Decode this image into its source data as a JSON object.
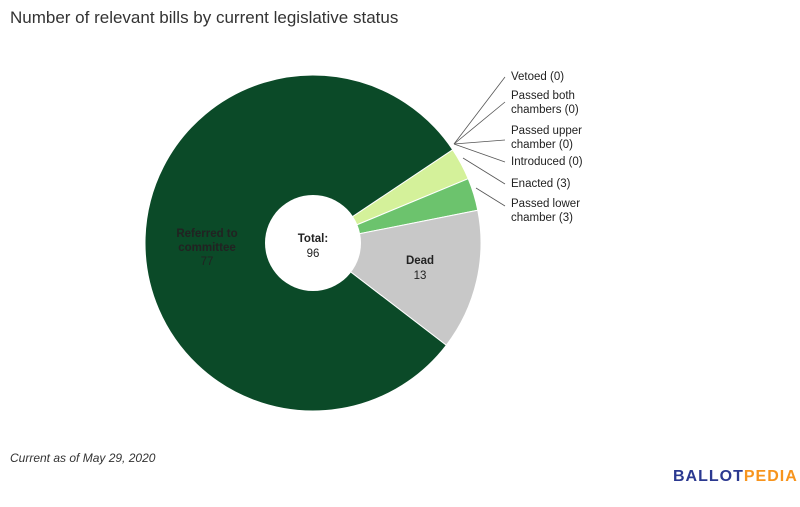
{
  "title": "Number of relevant bills by current legislative status",
  "footnote": "Current as of May 29, 2020",
  "logo": {
    "part1": "BALLOT",
    "part2": "PEDIA"
  },
  "center": {
    "label": "Total:",
    "value": "96"
  },
  "chart_data": {
    "type": "pie",
    "title": "Number of relevant bills by current legislative status",
    "total": 96,
    "slices": [
      {
        "name": "Enacted",
        "value": 3,
        "color": "#d4f19a",
        "legend": "Enacted (3)"
      },
      {
        "name": "Passed lower chamber",
        "value": 3,
        "color": "#6cc36d",
        "legend_lines": [
          "Passed lower",
          "chamber (3)"
        ]
      },
      {
        "name": "Dead",
        "value": 13,
        "color": "#c8c8c8",
        "lines": [
          "Dead",
          "13"
        ]
      },
      {
        "name": "Referred to committee",
        "value": 77,
        "color": "#0b4a28",
        "lines": [
          "Referred to",
          "committee",
          "77"
        ]
      },
      {
        "name": "Vetoed",
        "value": 0,
        "legend_lines": [
          "Vetoed (0)"
        ]
      },
      {
        "name": "Passed both chambers",
        "value": 0,
        "legend_lines": [
          "Passed both",
          "chambers (0)"
        ]
      },
      {
        "name": "Passed upper chamber",
        "value": 0,
        "legend_lines": [
          "Passed upper",
          "chamber (0)"
        ]
      },
      {
        "name": "Introduced",
        "value": 0,
        "legend_lines": [
          "Introduced (0)"
        ]
      }
    ]
  }
}
